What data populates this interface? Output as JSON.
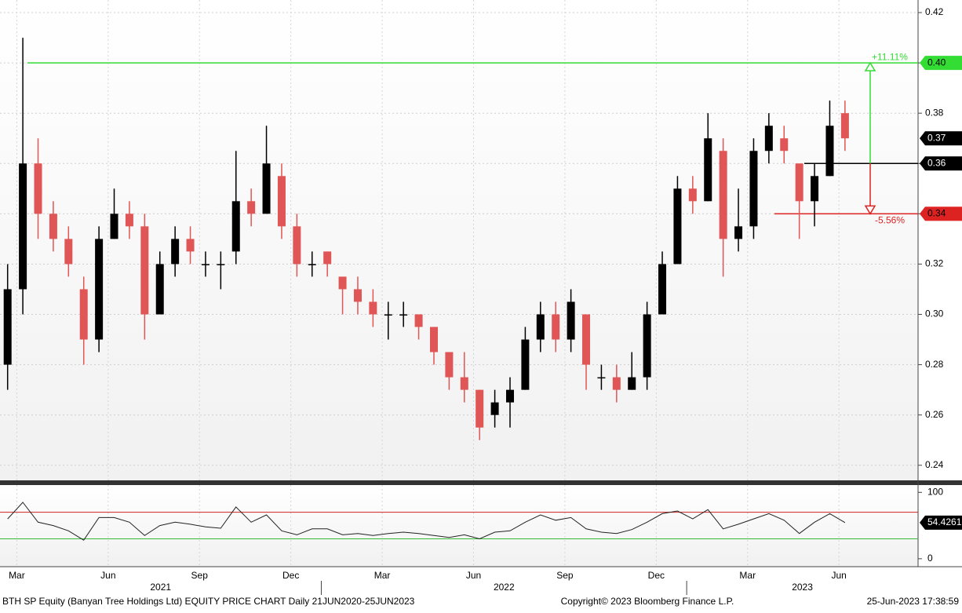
{
  "chart_data": {
    "type": "candlestick",
    "categories": [
      null,
      "Mar",
      null,
      null,
      null,
      null,
      null,
      "Jun",
      null,
      null,
      null,
      null,
      null,
      "Sep",
      null,
      null,
      null,
      null,
      null,
      "Dec",
      null,
      null,
      null,
      null,
      null,
      "Mar",
      null,
      null,
      null,
      null,
      null,
      "Jun",
      null,
      null,
      null,
      null,
      null,
      "Sep",
      null,
      null,
      null,
      null,
      null,
      "Dec",
      null,
      null,
      null,
      null,
      null,
      "Mar",
      null,
      null,
      null,
      null,
      null,
      "Jun"
    ],
    "year_labels": [
      "2021",
      "2022",
      "2023"
    ],
    "open": [
      0.28,
      0.31,
      0.36,
      0.34,
      0.33,
      0.31,
      0.29,
      0.33,
      0.34,
      0.335,
      0.3,
      0.32,
      0.33,
      0.32,
      0.32,
      0.325,
      0.345,
      0.34,
      0.355,
      0.335,
      0.32,
      0.325,
      0.315,
      0.31,
      0.305,
      0.3,
      0.3,
      0.3,
      0.295,
      0.285,
      0.275,
      0.27,
      0.26,
      0.265,
      0.27,
      0.29,
      0.3,
      0.29,
      0.3,
      0.275,
      0.275,
      0.27,
      0.275,
      0.3,
      0.32,
      0.35,
      0.345,
      0.365,
      0.33,
      0.335,
      0.365,
      0.37,
      0.36,
      0.345,
      0.355,
      0.38
    ],
    "high": [
      0.32,
      0.41,
      0.37,
      0.345,
      0.335,
      0.315,
      0.335,
      0.35,
      0.345,
      0.34,
      0.325,
      0.335,
      0.335,
      0.325,
      0.325,
      0.365,
      0.35,
      0.375,
      0.36,
      0.34,
      0.325,
      0.325,
      0.315,
      0.315,
      0.31,
      0.305,
      0.305,
      0.3,
      0.295,
      0.285,
      0.285,
      0.27,
      0.27,
      0.275,
      0.295,
      0.305,
      0.305,
      0.31,
      0.3,
      0.28,
      0.28,
      0.285,
      0.305,
      0.325,
      0.355,
      0.355,
      0.38,
      0.37,
      0.35,
      0.37,
      0.38,
      0.375,
      0.36,
      0.36,
      0.385,
      0.385
    ],
    "low": [
      0.27,
      0.3,
      0.33,
      0.325,
      0.315,
      0.28,
      0.285,
      0.33,
      0.33,
      0.29,
      0.3,
      0.315,
      0.32,
      0.315,
      0.31,
      0.32,
      0.335,
      0.34,
      0.33,
      0.315,
      0.315,
      0.315,
      0.3,
      0.3,
      0.295,
      0.29,
      0.295,
      0.29,
      0.28,
      0.27,
      0.265,
      0.25,
      0.255,
      0.255,
      0.27,
      0.285,
      0.285,
      0.285,
      0.27,
      0.27,
      0.265,
      0.27,
      0.27,
      0.3,
      0.32,
      0.34,
      0.345,
      0.315,
      0.325,
      0.33,
      0.36,
      0.36,
      0.33,
      0.335,
      0.355,
      0.365
    ],
    "close": [
      0.31,
      0.36,
      0.34,
      0.33,
      0.32,
      0.29,
      0.33,
      0.34,
      0.335,
      0.3,
      0.32,
      0.33,
      0.325,
      0.32,
      0.32,
      0.345,
      0.34,
      0.36,
      0.335,
      0.32,
      0.32,
      0.32,
      0.31,
      0.305,
      0.3,
      0.3,
      0.3,
      0.295,
      0.285,
      0.275,
      0.27,
      0.255,
      0.265,
      0.27,
      0.29,
      0.3,
      0.29,
      0.305,
      0.28,
      0.275,
      0.27,
      0.275,
      0.3,
      0.32,
      0.35,
      0.345,
      0.37,
      0.33,
      0.335,
      0.365,
      0.375,
      0.365,
      0.345,
      0.355,
      0.375,
      0.37
    ],
    "up_color": "#000000",
    "down_color": "#e05555",
    "ylim": [
      0.234,
      0.425
    ],
    "yticks": [
      0.24,
      0.26,
      0.28,
      {
        "value": 0.3,
        "label": "0.30"
      },
      0.32,
      0.34,
      0.36,
      0.38,
      {
        "value": 0.4,
        "label": "0.40"
      },
      0.42
    ],
    "grid": true,
    "last_price": 0.37,
    "reference_lines": [
      {
        "value": 0.4,
        "label": "0.40",
        "color": "#33dd33",
        "annotation": "+11.11%"
      },
      {
        "value": 0.36,
        "color": "#000000"
      },
      {
        "value": 0.34,
        "color": "#dd2222",
        "annotation": "-5.56%"
      }
    ],
    "indicator": {
      "type": "line",
      "color": "#222222",
      "values": [
        60,
        85,
        55,
        50,
        42,
        28,
        62,
        62,
        55,
        35,
        50,
        55,
        52,
        48,
        46,
        78,
        55,
        66,
        42,
        36,
        45,
        45,
        36,
        38,
        35,
        38,
        40,
        38,
        35,
        32,
        36,
        30,
        40,
        42,
        55,
        66,
        58,
        62,
        45,
        40,
        38,
        44,
        55,
        68,
        72,
        60,
        74,
        45,
        52,
        60,
        68,
        58,
        38,
        55,
        68,
        54.4261
      ],
      "last_label": "54.4261",
      "ylim": [
        -12,
        111
      ],
      "yticks": [
        0,
        100
      ],
      "upper_level": 70,
      "upper_color": "#cc2222",
      "lower_level": 30,
      "lower_color": "#33bb33"
    },
    "footer": {
      "left": "BTH SP Equity (Banyan Tree Holdings Ltd) EQUITY PRICE CHART  Daily 21JUN2020-25JUN2023",
      "center": "Copyright© 2023 Bloomberg Finance L.P.",
      "right": "25-Jun-2023 17:38:59"
    }
  }
}
